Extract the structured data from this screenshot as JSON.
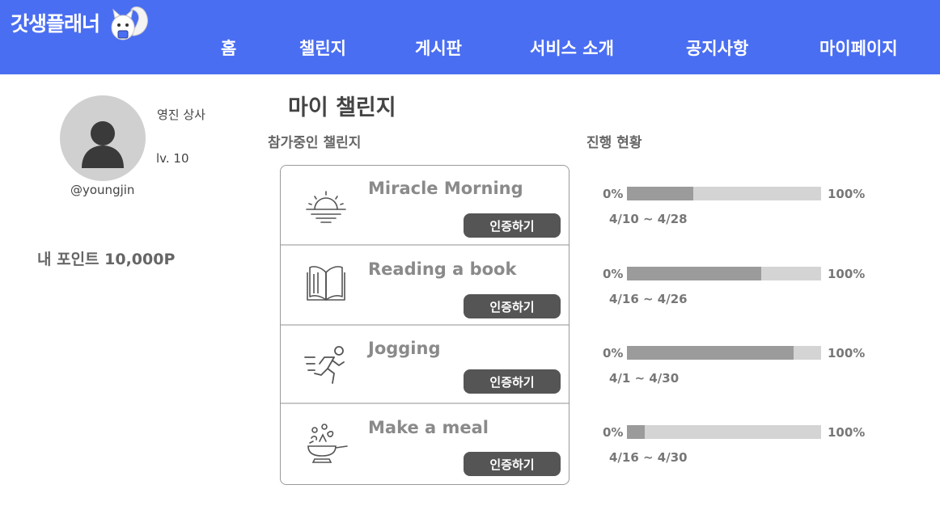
{
  "header": {
    "logo": "갓생플래너",
    "nav": [
      "홈",
      "챌린지",
      "게시판",
      "서비스 소개",
      "공지사항",
      "마이페이지"
    ]
  },
  "profile": {
    "name": "영진 상사",
    "level": "lv. 10",
    "handle": "@youngjin",
    "points": "내 포인트 10,000P"
  },
  "page_title": "마이 챌린지",
  "sections": {
    "participating": "참가중인 챌린지",
    "progress": "진행 현황"
  },
  "challenges": [
    {
      "title": "Miracle Morning",
      "icon": "sunrise-icon",
      "button": "인증하기",
      "progress_min": "0%",
      "progress_max": "100%",
      "progress": 0.34,
      "dates": "4/10 ~ 4/28"
    },
    {
      "title": "Reading a book",
      "icon": "book-icon",
      "button": "인증하기",
      "progress_min": "0%",
      "progress_max": "100%",
      "progress": 0.69,
      "dates": "4/16 ~ 4/26"
    },
    {
      "title": "Jogging",
      "icon": "runner-icon",
      "button": "인증하기",
      "progress_min": "0%",
      "progress_max": "100%",
      "progress": 0.86,
      "dates": "4/1 ~ 4/30"
    },
    {
      "title": "Make a meal",
      "icon": "cooking-pan-icon",
      "button": "인증하기",
      "progress_min": "0%",
      "progress_max": "100%",
      "progress": 0.09,
      "dates": "4/16 ~ 4/30"
    }
  ],
  "colors": {
    "header": "#4a6ef2",
    "button": "#555555",
    "bar_fill": "#9b9b9b",
    "bar_track": "#d4d4d4"
  }
}
